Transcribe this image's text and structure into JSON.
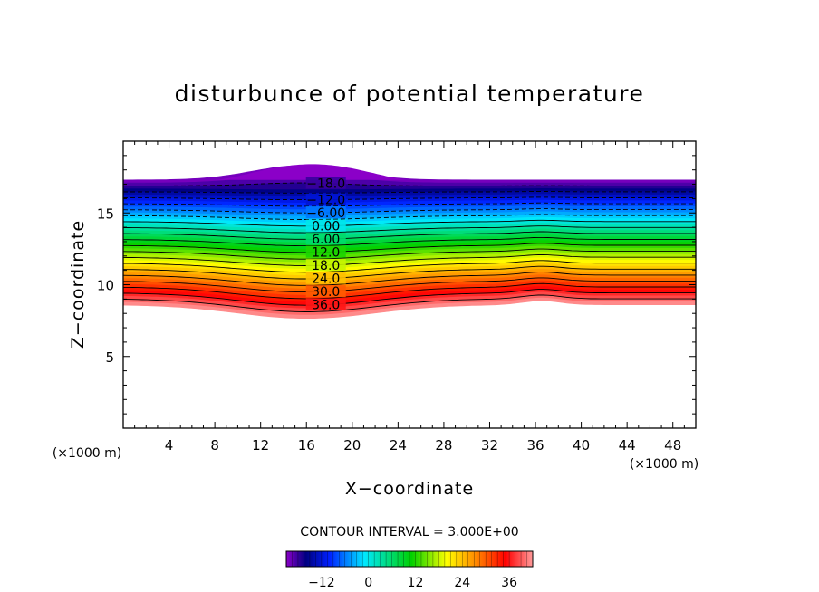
{
  "chart_data": {
    "type": "contour",
    "title": "disturbunce of potential temperature",
    "xlabel": "X−coordinate",
    "ylabel": "Z−coordinate",
    "x_unit_left": "(×1000 m)",
    "x_unit_right": "(×1000 m)",
    "xlim": [
      0,
      50
    ],
    "ylim": [
      0,
      20
    ],
    "x_ticks": [
      "4",
      "8",
      "12",
      "16",
      "20",
      "24",
      "28",
      "32",
      "36",
      "40",
      "44",
      "48"
    ],
    "x_tick_values": [
      4,
      8,
      12,
      16,
      20,
      24,
      28,
      32,
      36,
      40,
      44,
      48
    ],
    "y_ticks": [
      "5",
      "10",
      "15"
    ],
    "y_tick_values": [
      5,
      10,
      15
    ],
    "contour_interval_label": "CONTOUR INTERVAL = 3.000E+00",
    "contour_interval": 3,
    "contour_labels": [
      "−18.0",
      "−12.0",
      "−6.00",
      "0.00",
      "6.00",
      "12.0",
      "18.0",
      "24.0",
      "30.0",
      "36.0"
    ],
    "contour_label_values": [
      -18,
      -12,
      -6,
      0,
      6,
      12,
      18,
      24,
      30,
      36
    ],
    "field_top_z": 17.3,
    "field_bottom_z": 8.6,
    "bump_peak_z": 18.4,
    "bump_peak_x": 16,
    "colorbar": {
      "min": -21,
      "max": 42,
      "ticks": [
        "−12",
        "0",
        "12",
        "24",
        "36"
      ],
      "tick_values": [
        -12,
        0,
        12,
        24,
        36
      ]
    },
    "colors": {
      "purple": "#8b00c8",
      "navy": "#000080",
      "blue": "#0020ff",
      "cyan": "#00e8ff",
      "green": "#00d000",
      "yellow": "#ffff00",
      "orange": "#ff8000",
      "red": "#ff0000",
      "pink": "#ff9a9a"
    }
  }
}
